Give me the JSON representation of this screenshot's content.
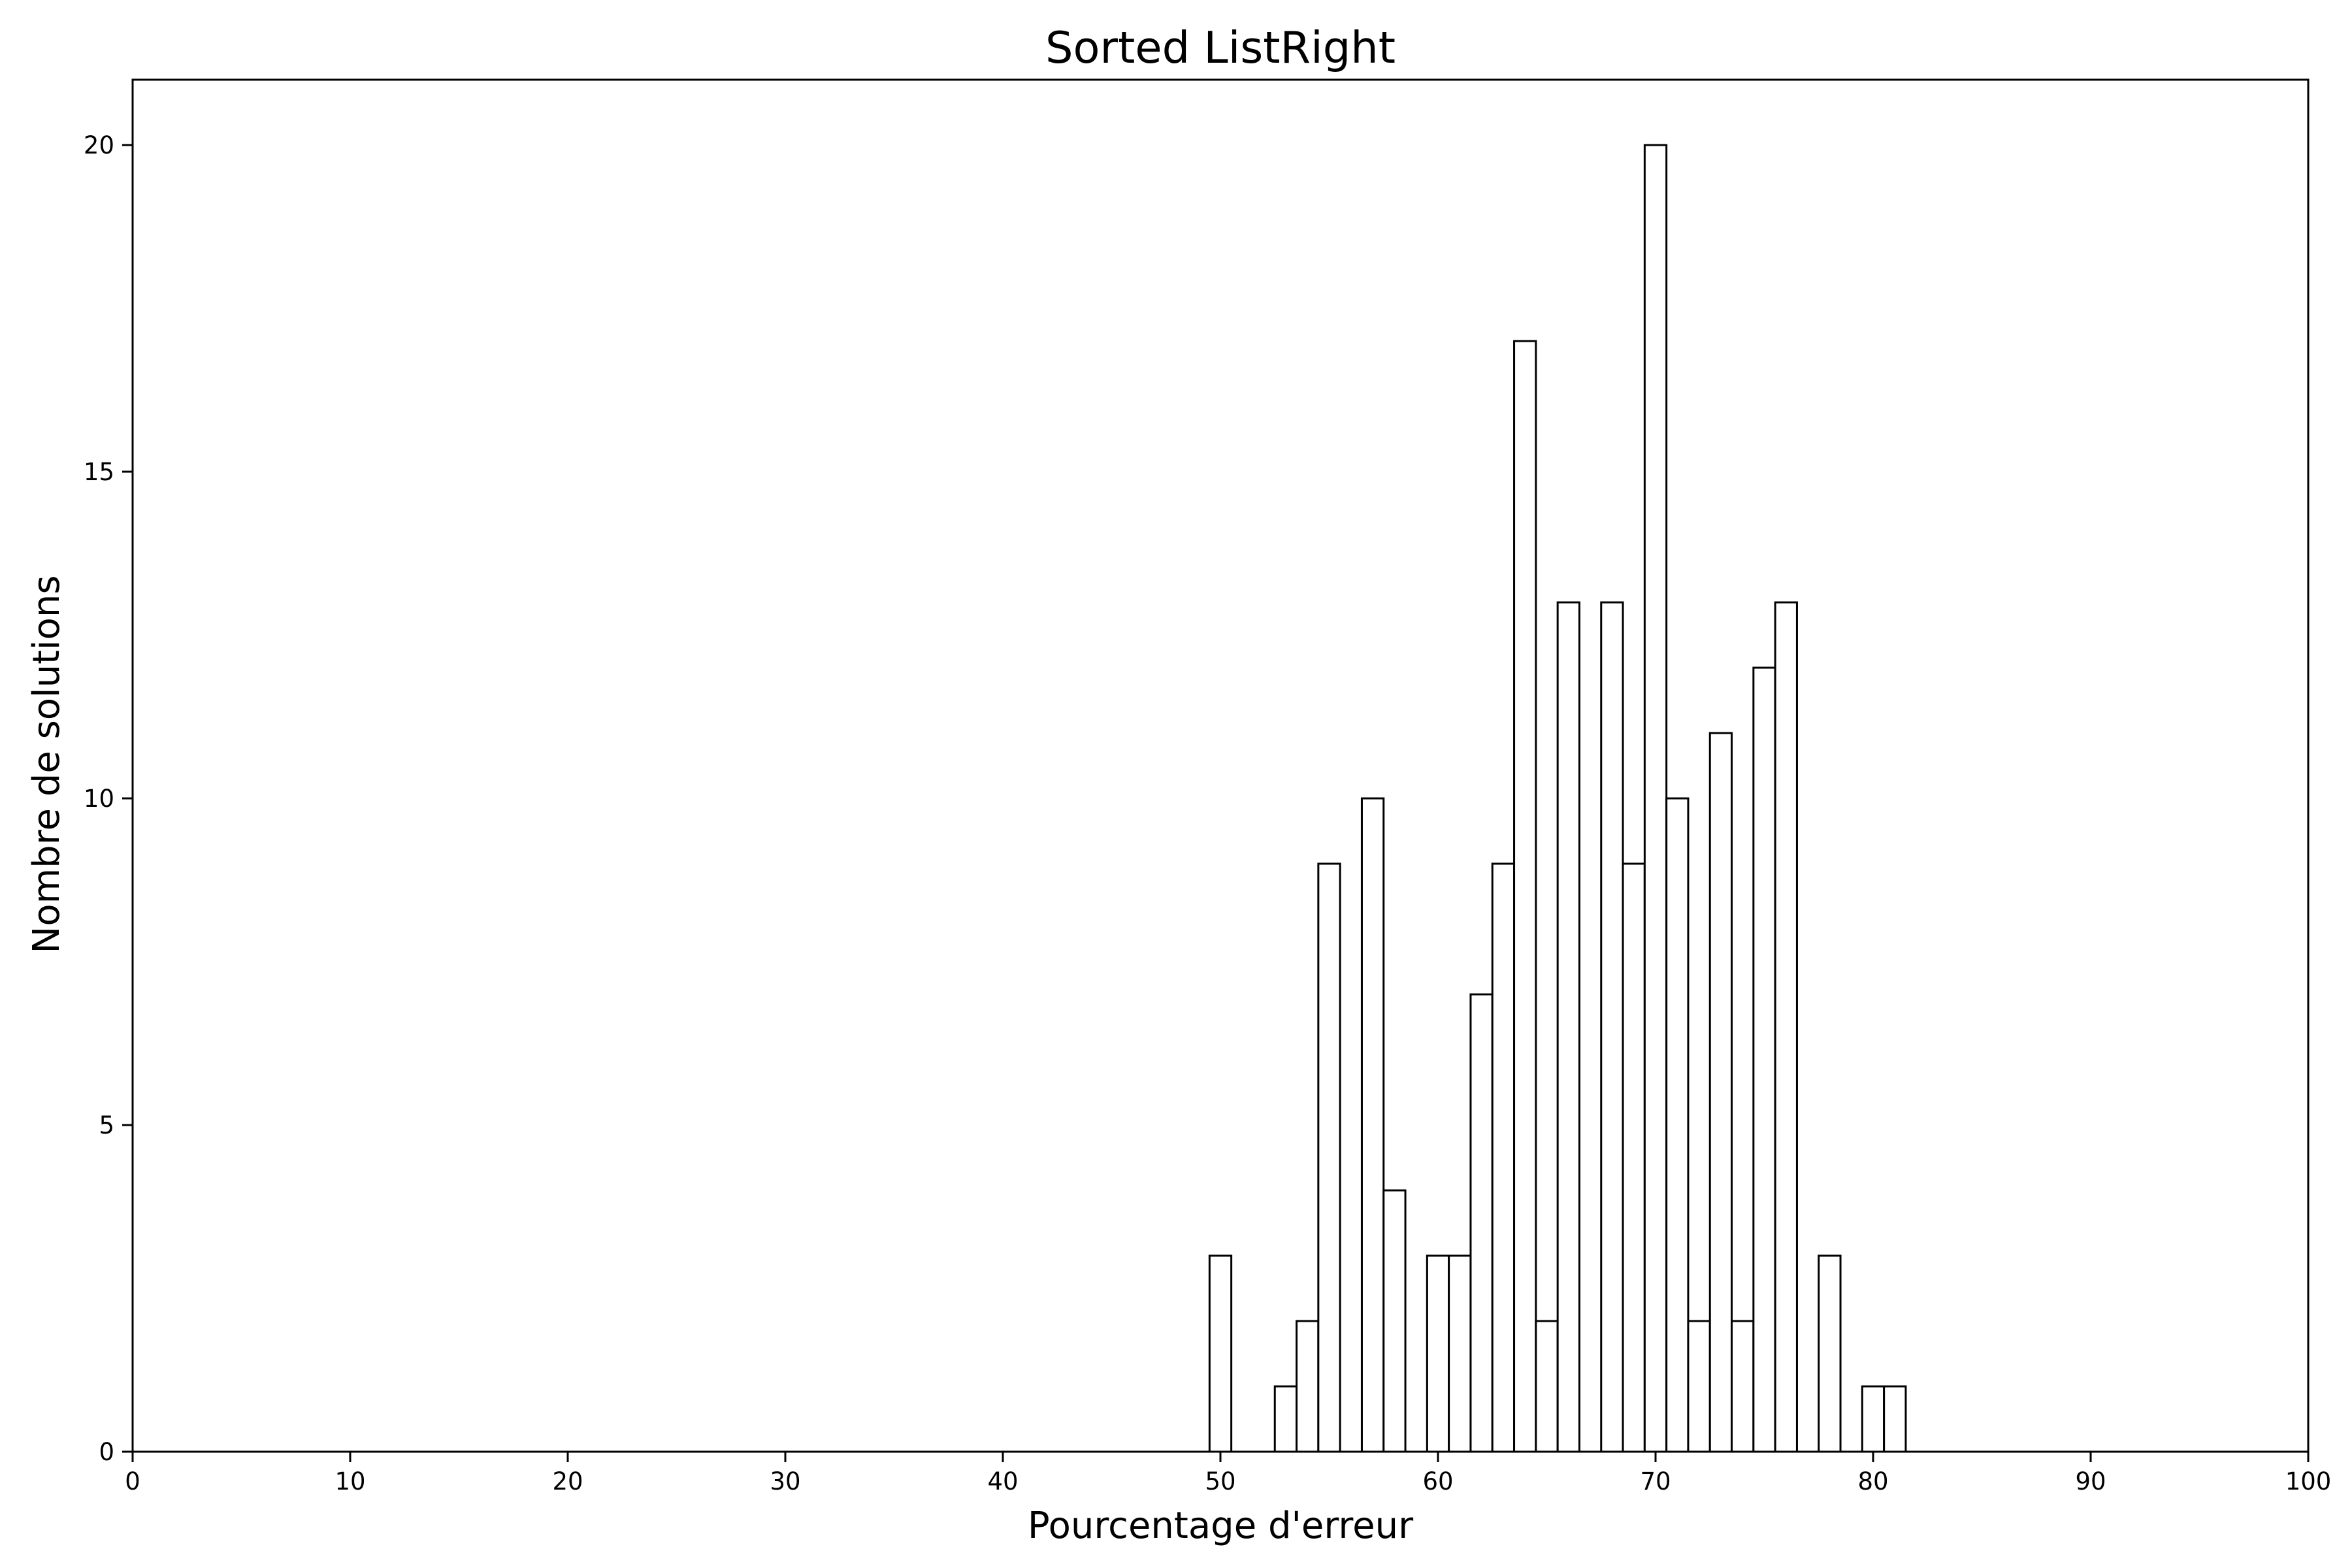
{
  "chart_data": {
    "type": "bar",
    "title": "Sorted ListRight",
    "xlabel": "Pourcentage d'erreur",
    "ylabel": "Nombre de solutions",
    "xlim": [
      0,
      100
    ],
    "ylim": [
      0,
      21
    ],
    "bin_width": 1.0,
    "xticks": [
      0,
      10,
      20,
      30,
      40,
      50,
      60,
      70,
      80,
      90,
      100
    ],
    "yticks": [
      0,
      5,
      10,
      15,
      20
    ],
    "grid": false,
    "legend": "none",
    "bar_fill": "#ffffff",
    "bar_edge": "#000000",
    "bins": [
      {
        "x": 49.5,
        "count": 3
      },
      {
        "x": 52.5,
        "count": 1
      },
      {
        "x": 53.5,
        "count": 2
      },
      {
        "x": 54.5,
        "count": 9
      },
      {
        "x": 56.5,
        "count": 10
      },
      {
        "x": 57.5,
        "count": 4
      },
      {
        "x": 59.5,
        "count": 3
      },
      {
        "x": 60.5,
        "count": 3
      },
      {
        "x": 61.5,
        "count": 7
      },
      {
        "x": 62.5,
        "count": 9
      },
      {
        "x": 63.5,
        "count": 17
      },
      {
        "x": 64.5,
        "count": 2
      },
      {
        "x": 65.5,
        "count": 13
      },
      {
        "x": 67.5,
        "count": 13
      },
      {
        "x": 68.5,
        "count": 9
      },
      {
        "x": 69.5,
        "count": 20
      },
      {
        "x": 70.5,
        "count": 10
      },
      {
        "x": 71.5,
        "count": 2
      },
      {
        "x": 72.5,
        "count": 11
      },
      {
        "x": 73.5,
        "count": 2
      },
      {
        "x": 74.5,
        "count": 12
      },
      {
        "x": 75.5,
        "count": 13
      },
      {
        "x": 77.5,
        "count": 3
      },
      {
        "x": 79.5,
        "count": 1
      },
      {
        "x": 80.5,
        "count": 1
      }
    ]
  }
}
